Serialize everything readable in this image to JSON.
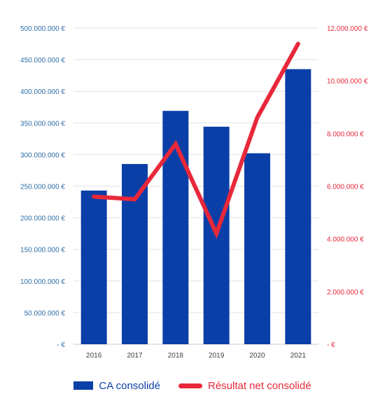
{
  "chart_data": {
    "type": "bar+line",
    "categories": [
      "2016",
      "2017",
      "2018",
      "2019",
      "2020",
      "2021"
    ],
    "series": [
      {
        "name": "CA consolidé",
        "type": "bar",
        "axis": "left",
        "color": "#0a3fa8",
        "values": [
          243000000,
          285000000,
          369000000,
          344000000,
          302000000,
          435000000
        ]
      },
      {
        "name": "Résultat net consolidé",
        "type": "line",
        "axis": "right",
        "color": "#e8283a",
        "values": [
          5600000,
          5500000,
          7600000,
          4200000,
          8600000,
          11400000
        ]
      }
    ],
    "left_axis": {
      "ylim": [
        0,
        500000000
      ],
      "ticks": [
        "-   €",
        "50.000.000 €",
        "100.000.000 €",
        "150.000.000 €",
        "200.000.000 €",
        "250.000.000 €",
        "300.000.000 €",
        "350.000.000 €",
        "400.000.000 €",
        "450.000.000 €",
        "500.000.000 €"
      ],
      "color": "#2f6fa8"
    },
    "right_axis": {
      "ylim": [
        0,
        12000000
      ],
      "ticks": [
        "-   €",
        "2.000.000 €",
        "4.000.000 €",
        "6.000.000 €",
        "8.000.000 €",
        "10.000.000 €",
        "12.000.000 €"
      ],
      "color": "#e8283a"
    },
    "grid": true,
    "legend_position": "bottom"
  }
}
